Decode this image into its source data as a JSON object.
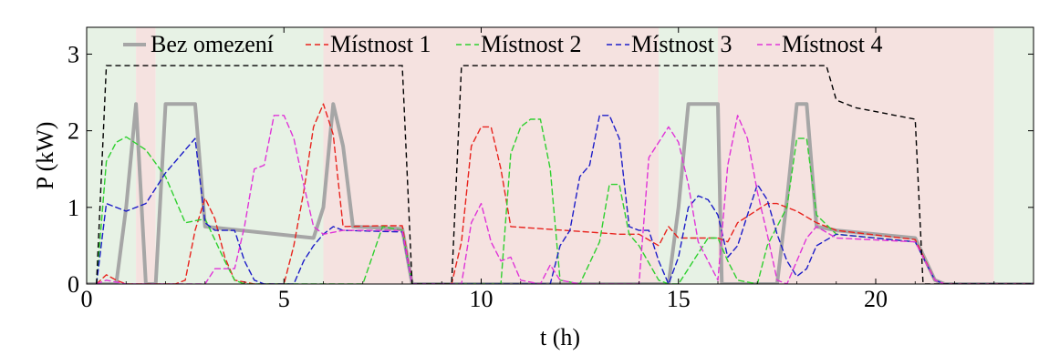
{
  "chart_data": {
    "type": "line",
    "xlabel": "t (h)",
    "ylabel": "P (kW)",
    "xlim": [
      0,
      24
    ],
    "ylim": [
      0,
      3.35
    ],
    "x_ticks": [
      0,
      5,
      10,
      15,
      20
    ],
    "y_ticks": [
      0,
      1,
      2,
      3
    ],
    "grid": false,
    "legend_position": "top",
    "background_bands": [
      {
        "x0": 0.0,
        "x1": 1.25,
        "kind": "green"
      },
      {
        "x0": 1.25,
        "x1": 1.75,
        "kind": "red"
      },
      {
        "x0": 1.75,
        "x1": 6.0,
        "kind": "green"
      },
      {
        "x0": 6.0,
        "x1": 14.5,
        "kind": "red"
      },
      {
        "x0": 14.5,
        "x1": 16.0,
        "kind": "green"
      },
      {
        "x0": 16.0,
        "x1": 23.0,
        "kind": "red"
      },
      {
        "x0": 23.0,
        "x1": 24.0,
        "kind": "green"
      }
    ],
    "band_colors": {
      "green": "#e7f2e5",
      "red": "#f5e2e0"
    },
    "limit_line": {
      "color": "#000000",
      "points": [
        [
          0.25,
          0
        ],
        [
          0.5,
          2.85
        ],
        [
          8.0,
          2.85
        ],
        [
          8.25,
          0
        ],
        [
          9.25,
          0
        ],
        [
          9.5,
          2.85
        ],
        [
          18.75,
          2.85
        ],
        [
          19.0,
          2.4
        ],
        [
          19.5,
          2.3
        ],
        [
          21.0,
          2.15
        ],
        [
          21.2,
          0
        ],
        [
          24,
          0
        ]
      ]
    },
    "series": [
      {
        "name": "Bez omezení",
        "color": "#a6a6a6",
        "style": "solid",
        "width": 4,
        "points": [
          [
            0,
            0
          ],
          [
            0.75,
            0
          ],
          [
            1.0,
            1.0
          ],
          [
            1.25,
            2.35
          ],
          [
            1.5,
            0
          ],
          [
            1.75,
            0
          ],
          [
            2.0,
            2.35
          ],
          [
            2.75,
            2.35
          ],
          [
            3.0,
            0.75
          ],
          [
            5.75,
            0.6
          ],
          [
            6.0,
            1.0
          ],
          [
            6.25,
            2.35
          ],
          [
            6.5,
            1.8
          ],
          [
            6.75,
            0.75
          ],
          [
            8.0,
            0.72
          ],
          [
            8.25,
            0
          ],
          [
            10.0,
            0
          ],
          [
            10.25,
            0
          ],
          [
            14.75,
            0
          ],
          [
            15.0,
            1.0
          ],
          [
            15.25,
            2.35
          ],
          [
            16.0,
            2.35
          ],
          [
            16.1,
            0
          ],
          [
            17.5,
            0
          ],
          [
            17.75,
            1.1
          ],
          [
            18.0,
            2.35
          ],
          [
            18.25,
            2.35
          ],
          [
            18.5,
            0.75
          ],
          [
            19.0,
            0.7
          ],
          [
            21.0,
            0.6
          ],
          [
            21.5,
            0.05
          ],
          [
            21.75,
            0
          ],
          [
            24,
            0
          ]
        ]
      },
      {
        "name": "Místnost 1",
        "color": "#e8231d",
        "style": "dashed",
        "width": 1.4,
        "points": [
          [
            0.25,
            0
          ],
          [
            0.5,
            0.12
          ],
          [
            0.75,
            0.05
          ],
          [
            1.0,
            0
          ],
          [
            2.25,
            0
          ],
          [
            2.5,
            0.05
          ],
          [
            2.75,
            0.7
          ],
          [
            3.0,
            1.12
          ],
          [
            3.25,
            0.85
          ],
          [
            3.5,
            0.35
          ],
          [
            3.75,
            0.05
          ],
          [
            4.25,
            0
          ],
          [
            5.0,
            0
          ],
          [
            5.25,
            0.5
          ],
          [
            5.5,
            1.2
          ],
          [
            5.75,
            2.05
          ],
          [
            6.0,
            2.35
          ],
          [
            6.25,
            1.95
          ],
          [
            6.5,
            0.75
          ],
          [
            7.5,
            0.76
          ],
          [
            8.0,
            0.76
          ],
          [
            8.25,
            0
          ],
          [
            9.25,
            0
          ],
          [
            9.5,
            0.55
          ],
          [
            9.75,
            1.8
          ],
          [
            10.0,
            2.05
          ],
          [
            10.25,
            2.05
          ],
          [
            10.5,
            1.5
          ],
          [
            10.75,
            0.75
          ],
          [
            13.5,
            0.65
          ],
          [
            14.0,
            0.65
          ],
          [
            14.5,
            0.5
          ],
          [
            14.75,
            0.75
          ],
          [
            15.0,
            0.6
          ],
          [
            16.0,
            0.6
          ],
          [
            16.25,
            0.55
          ],
          [
            16.5,
            0.8
          ],
          [
            17.25,
            1.05
          ],
          [
            17.5,
            1.05
          ],
          [
            18.0,
            0.95
          ],
          [
            18.5,
            0.8
          ],
          [
            19.0,
            0.7
          ],
          [
            21.0,
            0.58
          ],
          [
            21.5,
            0.05
          ],
          [
            21.75,
            0
          ],
          [
            24,
            0
          ]
        ]
      },
      {
        "name": "Místnost 2",
        "color": "#2fd02f",
        "style": "dashed",
        "width": 1.4,
        "points": [
          [
            0.25,
            0
          ],
          [
            0.5,
            1.6
          ],
          [
            0.75,
            1.85
          ],
          [
            1.0,
            1.92
          ],
          [
            1.5,
            1.75
          ],
          [
            2.0,
            1.4
          ],
          [
            2.5,
            0.8
          ],
          [
            3.0,
            0.85
          ],
          [
            3.5,
            0.3
          ],
          [
            3.75,
            0.05
          ],
          [
            4.0,
            0
          ],
          [
            7.0,
            0
          ],
          [
            7.5,
            0.75
          ],
          [
            8.0,
            0.7
          ],
          [
            8.25,
            0
          ],
          [
            10.5,
            0
          ],
          [
            10.75,
            1.7
          ],
          [
            11.0,
            2.05
          ],
          [
            11.25,
            2.15
          ],
          [
            11.5,
            2.15
          ],
          [
            11.75,
            1.5
          ],
          [
            12.0,
            0.05
          ],
          [
            12.5,
            0
          ],
          [
            13.0,
            0.55
          ],
          [
            13.25,
            1.3
          ],
          [
            13.5,
            1.3
          ],
          [
            13.75,
            0.65
          ],
          [
            14.0,
            0.5
          ],
          [
            14.5,
            0.05
          ],
          [
            14.75,
            0
          ],
          [
            15.0,
            0
          ],
          [
            15.25,
            0.2
          ],
          [
            15.5,
            0.4
          ],
          [
            15.75,
            0.6
          ],
          [
            16.0,
            0.6
          ],
          [
            16.25,
            0.3
          ],
          [
            16.5,
            0.05
          ],
          [
            17.0,
            0
          ],
          [
            17.25,
            0.5
          ],
          [
            17.75,
            1.0
          ],
          [
            18.0,
            1.9
          ],
          [
            18.25,
            1.9
          ],
          [
            18.5,
            0.9
          ],
          [
            19.0,
            0.65
          ],
          [
            21.0,
            0.55
          ],
          [
            21.5,
            0.05
          ],
          [
            21.75,
            0
          ],
          [
            24,
            0
          ]
        ]
      },
      {
        "name": "Místnost 3",
        "color": "#1c1cc8",
        "style": "dashed",
        "width": 1.4,
        "points": [
          [
            0.25,
            0
          ],
          [
            0.5,
            1.05
          ],
          [
            1.0,
            0.95
          ],
          [
            1.5,
            1.05
          ],
          [
            2.0,
            1.45
          ],
          [
            2.5,
            1.75
          ],
          [
            2.75,
            1.9
          ],
          [
            3.0,
            0.8
          ],
          [
            3.25,
            0.7
          ],
          [
            3.75,
            0.7
          ],
          [
            4.0,
            0.3
          ],
          [
            4.25,
            0.05
          ],
          [
            4.5,
            0
          ],
          [
            5.25,
            0
          ],
          [
            5.5,
            0.3
          ],
          [
            5.75,
            0.5
          ],
          [
            6.0,
            0.65
          ],
          [
            6.25,
            0.75
          ],
          [
            6.5,
            0.7
          ],
          [
            8.0,
            0.68
          ],
          [
            8.25,
            0
          ],
          [
            11.75,
            0
          ],
          [
            12.0,
            0.5
          ],
          [
            12.25,
            0.7
          ],
          [
            12.5,
            1.4
          ],
          [
            12.75,
            1.55
          ],
          [
            13.0,
            2.2
          ],
          [
            13.25,
            2.2
          ],
          [
            13.5,
            1.9
          ],
          [
            13.75,
            0.75
          ],
          [
            14.0,
            0.7
          ],
          [
            14.25,
            0.7
          ],
          [
            14.5,
            0.3
          ],
          [
            14.75,
            0
          ],
          [
            15.0,
            0.35
          ],
          [
            15.25,
            1.0
          ],
          [
            15.5,
            1.15
          ],
          [
            15.75,
            1.1
          ],
          [
            16.0,
            0.9
          ],
          [
            16.25,
            0.35
          ],
          [
            16.5,
            0.5
          ],
          [
            16.75,
            0.9
          ],
          [
            17.0,
            1.3
          ],
          [
            17.25,
            1.1
          ],
          [
            17.5,
            0.65
          ],
          [
            17.75,
            0.3
          ],
          [
            18.0,
            0.1
          ],
          [
            18.25,
            0.2
          ],
          [
            18.5,
            0.5
          ],
          [
            19.0,
            0.65
          ],
          [
            21.0,
            0.55
          ],
          [
            21.5,
            0.05
          ],
          [
            21.75,
            0
          ],
          [
            24,
            0
          ]
        ]
      },
      {
        "name": "Místnost 4",
        "color": "#e034d8",
        "style": "dashed",
        "width": 1.4,
        "points": [
          [
            0.25,
            0
          ],
          [
            0.5,
            0.05
          ],
          [
            1.0,
            0
          ],
          [
            3.0,
            0
          ],
          [
            3.25,
            0.2
          ],
          [
            3.75,
            0.2
          ],
          [
            4.0,
            0.75
          ],
          [
            4.25,
            1.5
          ],
          [
            4.5,
            1.55
          ],
          [
            4.75,
            2.2
          ],
          [
            5.0,
            2.2
          ],
          [
            5.25,
            1.9
          ],
          [
            5.5,
            1.3
          ],
          [
            5.75,
            0.75
          ],
          [
            6.0,
            0.65
          ],
          [
            6.5,
            0.7
          ],
          [
            8.0,
            0.7
          ],
          [
            8.25,
            0
          ],
          [
            9.5,
            0
          ],
          [
            9.75,
            0.8
          ],
          [
            10.0,
            1.05
          ],
          [
            10.25,
            0.55
          ],
          [
            10.5,
            0.3
          ],
          [
            10.75,
            0.35
          ],
          [
            11.0,
            0.05
          ],
          [
            11.5,
            0
          ],
          [
            11.75,
            0.25
          ],
          [
            12.0,
            0.05
          ],
          [
            12.5,
            0
          ],
          [
            14.0,
            0
          ],
          [
            14.25,
            1.65
          ],
          [
            14.5,
            1.85
          ],
          [
            14.75,
            2.05
          ],
          [
            15.0,
            1.85
          ],
          [
            15.25,
            1.3
          ],
          [
            15.5,
            0.55
          ],
          [
            16.0,
            0.05
          ],
          [
            16.25,
            1.55
          ],
          [
            16.5,
            2.2
          ],
          [
            16.75,
            1.9
          ],
          [
            17.0,
            1.2
          ],
          [
            17.25,
            0.65
          ],
          [
            17.5,
            0.05
          ],
          [
            17.75,
            0
          ],
          [
            18.25,
            0.6
          ],
          [
            18.5,
            0.75
          ],
          [
            19.0,
            0.6
          ],
          [
            21.0,
            0.55
          ],
          [
            21.5,
            0.05
          ],
          [
            21.75,
            0
          ],
          [
            24,
            0
          ]
        ]
      }
    ]
  }
}
